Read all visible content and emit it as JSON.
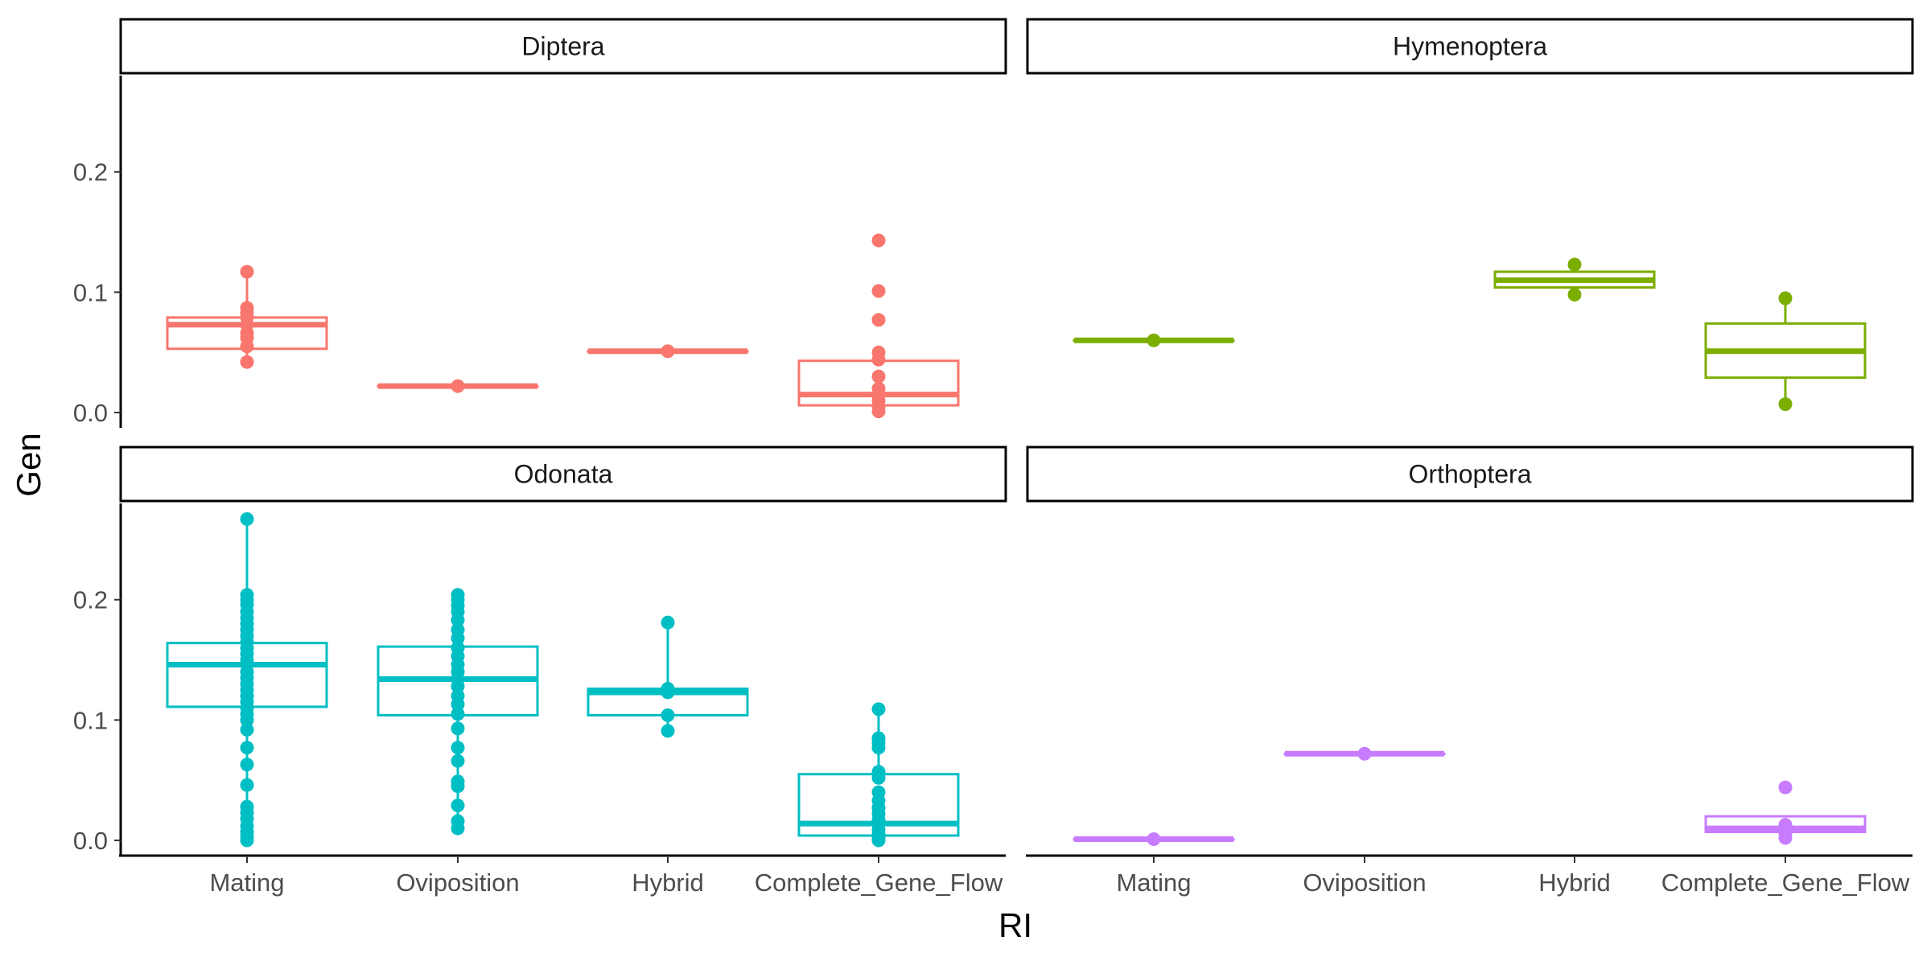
{
  "chart_data": {
    "type": "boxplot",
    "xlabel": "RI",
    "ylabel": "Gen",
    "ylim": [
      -0.01,
      0.28
    ],
    "yticks": [
      "0.0",
      "0.1",
      "0.2"
    ],
    "categories": [
      "Mating",
      "Oviposition",
      "Hybrid",
      "Complete_Gene_Flow"
    ],
    "grid": false,
    "legend": "none",
    "facets": [
      {
        "name": "Diptera",
        "color": "#F8766D",
        "boxes": [
          {
            "category": "Mating",
            "q1": 0.053,
            "median": 0.073,
            "q3": 0.079,
            "whisker_low": 0.042,
            "whisker_high": 0.117,
            "points": [
              0.117,
              0.087,
              0.083,
              0.079,
              0.073,
              0.066,
              0.062,
              0.055,
              0.042
            ]
          },
          {
            "category": "Oviposition",
            "q1": 0.022,
            "median": 0.022,
            "q3": 0.022,
            "whisker_low": 0.022,
            "whisker_high": 0.022,
            "points": [
              0.022
            ]
          },
          {
            "category": "Hybrid",
            "q1": 0.051,
            "median": 0.051,
            "q3": 0.051,
            "whisker_low": 0.051,
            "whisker_high": 0.051,
            "points": [
              0.051
            ]
          },
          {
            "category": "Complete_Gene_Flow",
            "q1": 0.006,
            "median": 0.015,
            "q3": 0.043,
            "whisker_low": 0.0,
            "whisker_high": 0.05,
            "points": [
              0.143,
              0.101,
              0.077,
              0.05,
              0.044,
              0.03,
              0.02,
              0.015,
              0.01,
              0.005,
              0.001
            ]
          }
        ]
      },
      {
        "name": "Hymenoptera",
        "color": "#7CAE00",
        "boxes": [
          {
            "category": "Mating",
            "q1": 0.06,
            "median": 0.06,
            "q3": 0.06,
            "whisker_low": 0.06,
            "whisker_high": 0.06,
            "points": [
              0.06
            ]
          },
          {
            "category": "Hybrid",
            "q1": 0.104,
            "median": 0.11,
            "q3": 0.117,
            "whisker_low": 0.098,
            "whisker_high": 0.123,
            "points": [
              0.123,
              0.098
            ]
          },
          {
            "category": "Complete_Gene_Flow",
            "q1": 0.029,
            "median": 0.051,
            "q3": 0.074,
            "whisker_low": 0.007,
            "whisker_high": 0.095,
            "points": [
              0.095,
              0.007
            ]
          }
        ]
      },
      {
        "name": "Odonata",
        "color": "#00BFC4",
        "boxes": [
          {
            "category": "Mating",
            "q1": 0.111,
            "median": 0.146,
            "q3": 0.164,
            "whisker_low": 0.0,
            "whisker_high": 0.267,
            "points": [
              0.267,
              0.204,
              0.2,
              0.196,
              0.19,
              0.185,
              0.18,
              0.175,
              0.17,
              0.165,
              0.16,
              0.155,
              0.15,
              0.146,
              0.14,
              0.135,
              0.13,
              0.125,
              0.12,
              0.115,
              0.11,
              0.105,
              0.1,
              0.092,
              0.077,
              0.063,
              0.046,
              0.028,
              0.023,
              0.018,
              0.012,
              0.007,
              0.003,
              0.0
            ]
          },
          {
            "category": "Oviposition",
            "q1": 0.104,
            "median": 0.134,
            "q3": 0.161,
            "whisker_low": 0.01,
            "whisker_high": 0.204,
            "points": [
              0.204,
              0.2,
              0.195,
              0.19,
              0.183,
              0.175,
              0.168,
              0.16,
              0.153,
              0.146,
              0.14,
              0.134,
              0.128,
              0.12,
              0.113,
              0.105,
              0.093,
              0.077,
              0.066,
              0.049,
              0.045,
              0.029,
              0.016,
              0.01
            ]
          },
          {
            "category": "Hybrid",
            "q1": 0.104,
            "median": 0.123,
            "q3": 0.126,
            "whisker_low": 0.091,
            "whisker_high": 0.181,
            "points": [
              0.181,
              0.126,
              0.123,
              0.104,
              0.091
            ]
          },
          {
            "category": "Complete_Gene_Flow",
            "q1": 0.004,
            "median": 0.014,
            "q3": 0.055,
            "whisker_low": 0.0,
            "whisker_high": 0.109,
            "points": [
              0.109,
              0.085,
              0.081,
              0.077,
              0.057,
              0.052,
              0.04,
              0.033,
              0.027,
              0.022,
              0.017,
              0.014,
              0.009,
              0.005,
              0.002,
              0.0
            ]
          }
        ]
      },
      {
        "name": "Orthoptera",
        "color": "#C77CFF",
        "boxes": [
          {
            "category": "Mating",
            "q1": 0.001,
            "median": 0.001,
            "q3": 0.001,
            "whisker_low": 0.001,
            "whisker_high": 0.001,
            "points": [
              0.001
            ]
          },
          {
            "category": "Oviposition",
            "q1": 0.072,
            "median": 0.072,
            "q3": 0.072,
            "whisker_low": 0.072,
            "whisker_high": 0.072,
            "points": [
              0.072
            ]
          },
          {
            "category": "Complete_Gene_Flow",
            "q1": 0.007,
            "median": 0.01,
            "q3": 0.02,
            "whisker_low": 0.002,
            "whisker_high": 0.02,
            "points": [
              0.044,
              0.013,
              0.01,
              0.006,
              0.002
            ]
          }
        ]
      }
    ]
  }
}
